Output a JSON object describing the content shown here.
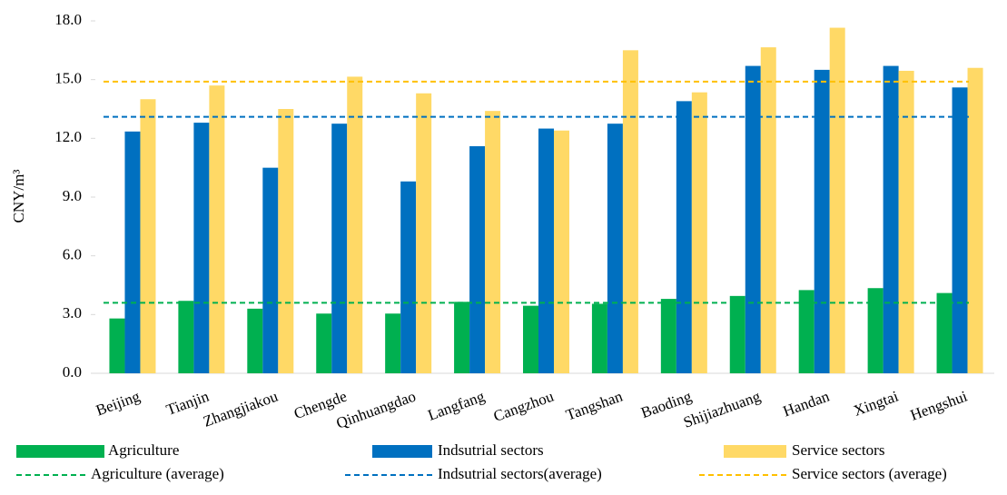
{
  "chart_data": {
    "type": "bar",
    "y_label": "CNY/m³",
    "categories": [
      "Beijing",
      "Tianjin",
      "Zhangjiakou",
      "Chengde",
      "Qinhuangdao",
      "Langfang",
      "Cangzhou",
      "Tangshan",
      "Baoding",
      "Shijiazhuang",
      "Handan",
      "Xingtai",
      "Hengshui"
    ],
    "series": [
      {
        "name": "Agriculture",
        "color": "#00b050",
        "values": [
          2.8,
          3.7,
          3.3,
          3.05,
          3.05,
          3.65,
          3.45,
          3.55,
          3.8,
          3.95,
          4.25,
          4.35,
          4.1
        ]
      },
      {
        "name": "Indsutrial sectors",
        "color": "#0070c0",
        "values": [
          12.35,
          12.8,
          10.5,
          12.75,
          9.8,
          11.6,
          12.5,
          12.75,
          13.9,
          15.7,
          15.5,
          15.7,
          14.6
        ]
      },
      {
        "name": "Service sectors",
        "color": "#ffd966",
        "values": [
          14.0,
          14.7,
          13.5,
          15.15,
          14.3,
          13.4,
          12.4,
          16.5,
          14.35,
          16.65,
          17.65,
          15.45,
          15.6
        ]
      }
    ],
    "averages": [
      {
        "name": "Agriculture (average)",
        "color": "#00b050",
        "value": 3.6
      },
      {
        "name": "Indsutrial sectors(average)",
        "color": "#0070c0",
        "value": 13.1
      },
      {
        "name": "Service sectors (average)",
        "color": "#ffc000",
        "value": 14.9
      }
    ],
    "ylim": [
      0,
      18
    ],
    "yticks": [
      {
        "value": 0,
        "label": "0.0"
      },
      {
        "value": 3,
        "label": "3.0"
      },
      {
        "value": 6,
        "label": "6.0"
      },
      {
        "value": 9,
        "label": "9.0"
      },
      {
        "value": 12,
        "label": "12.0"
      },
      {
        "value": 15,
        "label": "15.0"
      },
      {
        "value": 18,
        "label": "18.0"
      }
    ],
    "grid": false,
    "legend": "bottom"
  }
}
